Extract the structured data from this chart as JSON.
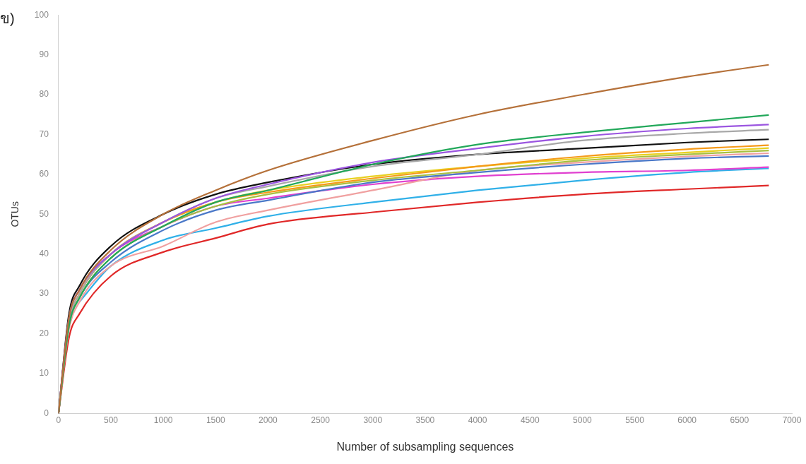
{
  "chart_data": {
    "type": "line",
    "xlabel": "Number of subsampling sequences",
    "ylabel": "OTUs",
    "annotations": [
      "ข)"
    ],
    "x": [
      0,
      100,
      200,
      500,
      1000,
      1500,
      2000,
      3000,
      4000,
      5000,
      6000,
      6780
    ],
    "xlim": [
      0,
      7000
    ],
    "xticks": [
      0,
      500,
      1000,
      1500,
      2000,
      2500,
      3000,
      3500,
      4000,
      4500,
      5000,
      5500,
      6000,
      6500,
      7000
    ],
    "ylim": [
      0,
      100
    ],
    "yticks": [
      0,
      10,
      20,
      30,
      40,
      50,
      60,
      70,
      80,
      90,
      100
    ],
    "grid": false,
    "legend": false,
    "marker": "none",
    "line_style": "solid",
    "series": [
      {
        "color": "#b5713a",
        "values": [
          0,
          24,
          31,
          41,
          50,
          56,
          61,
          68.5,
          75,
          80,
          84.5,
          87.5
        ]
      },
      {
        "color": "#22a85a",
        "values": [
          0,
          22,
          29,
          39,
          47,
          53,
          56,
          62.5,
          67.5,
          70.5,
          73,
          74.9
        ]
      },
      {
        "color": "#9b55e0",
        "values": [
          0,
          24,
          31,
          40,
          48,
          54,
          57.5,
          63,
          66.5,
          69.5,
          71.5,
          72.5
        ]
      },
      {
        "color": "#a8a8a8",
        "values": [
          0,
          23,
          30,
          40,
          48,
          54,
          57,
          62,
          65,
          68.5,
          70.3,
          71.2
        ]
      },
      {
        "color": "#111111",
        "values": [
          0,
          25,
          32,
          42,
          50,
          55,
          58,
          62.5,
          65,
          66.5,
          68,
          68.8
        ]
      },
      {
        "color": "#f59a1a",
        "values": [
          0,
          23,
          30,
          40,
          48,
          53,
          55.5,
          59,
          62,
          64.5,
          66.3,
          67.3
        ]
      },
      {
        "color": "#e8d020",
        "values": [
          0,
          23,
          30,
          40,
          48,
          53,
          56,
          59.5,
          62,
          64,
          65.5,
          66.6
        ]
      },
      {
        "color": "#a8c040",
        "values": [
          0,
          22,
          29,
          39,
          47,
          52,
          55,
          58.5,
          61,
          63.5,
          65,
          66
        ]
      },
      {
        "color": "#4a78c8",
        "values": [
          0,
          22,
          29,
          38,
          46,
          51,
          53.5,
          58,
          60.5,
          62.5,
          64,
          64.6
        ]
      },
      {
        "color": "#f0a0a0",
        "values": [
          0,
          21,
          28,
          37,
          42,
          48,
          51,
          56,
          61,
          63,
          64.5,
          65.3
        ]
      },
      {
        "color": "#e040d0",
        "values": [
          0,
          24,
          31,
          40,
          47,
          52,
          54,
          57.5,
          59.5,
          60.5,
          61,
          61.8
        ]
      },
      {
        "color": "#30b0e8",
        "values": [
          null,
          null,
          28,
          37,
          43.5,
          46.5,
          49.5,
          53,
          56,
          58.5,
          60.5,
          61.5
        ]
      },
      {
        "color": "#e02828",
        "values": [
          0,
          19,
          25,
          34.5,
          40.5,
          44,
          47.5,
          50.5,
          53,
          55,
          56.3,
          57.2
        ]
      }
    ]
  }
}
